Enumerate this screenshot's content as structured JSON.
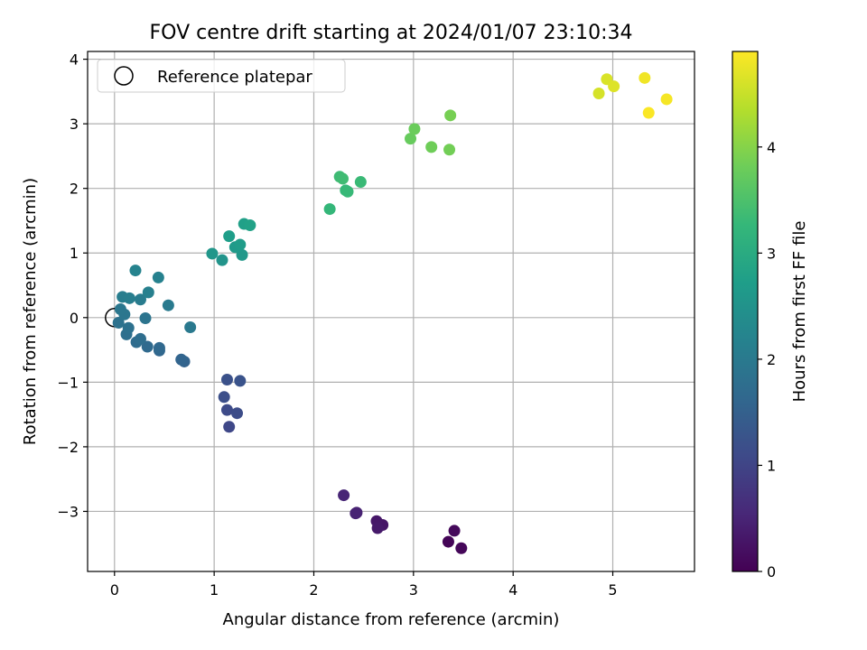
{
  "chart_data": {
    "type": "scatter",
    "title": "FOV centre drift starting at 2024/01/07 23:10:34",
    "xlabel": "Angular distance from reference (arcmin)",
    "ylabel": "Rotation from reference (arcmin)",
    "xlim": [
      -0.27,
      5.82
    ],
    "ylim": [
      -3.93,
      4.12
    ],
    "xticks": [
      0,
      1,
      2,
      3,
      4,
      5
    ],
    "yticks": [
      -3,
      -2,
      -1,
      0,
      1,
      2,
      3,
      4
    ],
    "xtick_labels": [
      "0",
      "1",
      "2",
      "3",
      "4",
      "5"
    ],
    "ytick_labels": [
      "−3",
      "−2",
      "−1",
      "0",
      "1",
      "2",
      "3",
      "4"
    ],
    "grid": true,
    "legend": {
      "position": "top-left",
      "entries": [
        {
          "label": "Reference platepar",
          "marker": "open-circle",
          "x": 0,
          "y": 0
        }
      ]
    },
    "colorbar": {
      "label": "Hours from first FF file",
      "range": [
        0,
        4.9
      ],
      "ticks": [
        0,
        1,
        2,
        3,
        4
      ],
      "tick_labels": [
        "0",
        "1",
        "2",
        "3",
        "4"
      ],
      "colormap": "viridis"
    },
    "points": [
      {
        "x": 3.35,
        "y": -3.47,
        "h": 0.05
      },
      {
        "x": 3.48,
        "y": -3.57,
        "h": 0.08
      },
      {
        "x": 3.41,
        "y": -3.3,
        "h": 0.11
      },
      {
        "x": 2.69,
        "y": -3.21,
        "h": 0.28
      },
      {
        "x": 2.63,
        "y": -3.15,
        "h": 0.31
      },
      {
        "x": 2.64,
        "y": -3.26,
        "h": 0.34
      },
      {
        "x": 2.43,
        "y": -3.02,
        "h": 0.45
      },
      {
        "x": 2.42,
        "y": -3.03,
        "h": 0.48
      },
      {
        "x": 2.3,
        "y": -2.75,
        "h": 0.52
      },
      {
        "x": 1.15,
        "y": -1.69,
        "h": 1.05
      },
      {
        "x": 1.13,
        "y": -1.43,
        "h": 1.1
      },
      {
        "x": 1.23,
        "y": -1.48,
        "h": 1.14
      },
      {
        "x": 1.1,
        "y": -1.23,
        "h": 1.18
      },
      {
        "x": 1.13,
        "y": -0.96,
        "h": 1.22
      },
      {
        "x": 1.26,
        "y": -0.98,
        "h": 1.26
      },
      {
        "x": 0.7,
        "y": -0.68,
        "h": 1.55
      },
      {
        "x": 0.67,
        "y": -0.65,
        "h": 1.58
      },
      {
        "x": 0.45,
        "y": -0.51,
        "h": 1.62
      },
      {
        "x": 0.45,
        "y": -0.47,
        "h": 1.65
      },
      {
        "x": 0.33,
        "y": -0.45,
        "h": 1.68
      },
      {
        "x": 0.22,
        "y": -0.38,
        "h": 1.72
      },
      {
        "x": 0.26,
        "y": -0.33,
        "h": 1.75
      },
      {
        "x": 0.12,
        "y": -0.26,
        "h": 1.78
      },
      {
        "x": 0.14,
        "y": -0.16,
        "h": 1.82
      },
      {
        "x": 0.04,
        "y": -0.08,
        "h": 1.85
      },
      {
        "x": 0.31,
        "y": -0.01,
        "h": 1.88
      },
      {
        "x": 0.1,
        "y": 0.05,
        "h": 1.92
      },
      {
        "x": 0.06,
        "y": 0.13,
        "h": 1.95
      },
      {
        "x": 0.76,
        "y": -0.15,
        "h": 1.98
      },
      {
        "x": 0.54,
        "y": 0.19,
        "h": 2.02
      },
      {
        "x": 0.26,
        "y": 0.28,
        "h": 2.05
      },
      {
        "x": 0.08,
        "y": 0.32,
        "h": 2.08
      },
      {
        "x": 0.15,
        "y": 0.3,
        "h": 2.1
      },
      {
        "x": 0.34,
        "y": 0.39,
        "h": 2.13
      },
      {
        "x": 0.44,
        "y": 0.62,
        "h": 2.16
      },
      {
        "x": 0.21,
        "y": 0.73,
        "h": 2.2
      },
      {
        "x": 1.08,
        "y": 0.89,
        "h": 2.52
      },
      {
        "x": 0.98,
        "y": 0.99,
        "h": 2.56
      },
      {
        "x": 1.28,
        "y": 0.97,
        "h": 2.6
      },
      {
        "x": 1.21,
        "y": 1.09,
        "h": 2.64
      },
      {
        "x": 1.26,
        "y": 1.13,
        "h": 2.68
      },
      {
        "x": 1.15,
        "y": 1.26,
        "h": 2.72
      },
      {
        "x": 1.3,
        "y": 1.45,
        "h": 2.76
      },
      {
        "x": 1.36,
        "y": 1.43,
        "h": 2.8
      },
      {
        "x": 2.16,
        "y": 1.68,
        "h": 3.25
      },
      {
        "x": 2.32,
        "y": 1.97,
        "h": 3.28
      },
      {
        "x": 2.34,
        "y": 1.95,
        "h": 3.3
      },
      {
        "x": 2.47,
        "y": 2.1,
        "h": 3.32
      },
      {
        "x": 2.26,
        "y": 2.18,
        "h": 3.35
      },
      {
        "x": 2.29,
        "y": 2.15,
        "h": 3.37
      },
      {
        "x": 2.97,
        "y": 2.77,
        "h": 3.75
      },
      {
        "x": 3.01,
        "y": 2.92,
        "h": 3.78
      },
      {
        "x": 3.18,
        "y": 2.64,
        "h": 3.82
      },
      {
        "x": 3.36,
        "y": 2.6,
        "h": 3.85
      },
      {
        "x": 3.37,
        "y": 3.13,
        "h": 3.88
      },
      {
        "x": 4.86,
        "y": 3.47,
        "h": 4.6
      },
      {
        "x": 4.94,
        "y": 3.69,
        "h": 4.63
      },
      {
        "x": 5.01,
        "y": 3.58,
        "h": 4.66
      },
      {
        "x": 5.32,
        "y": 3.71,
        "h": 4.8
      },
      {
        "x": 5.54,
        "y": 3.38,
        "h": 4.84
      },
      {
        "x": 5.36,
        "y": 3.17,
        "h": 4.88
      }
    ]
  }
}
